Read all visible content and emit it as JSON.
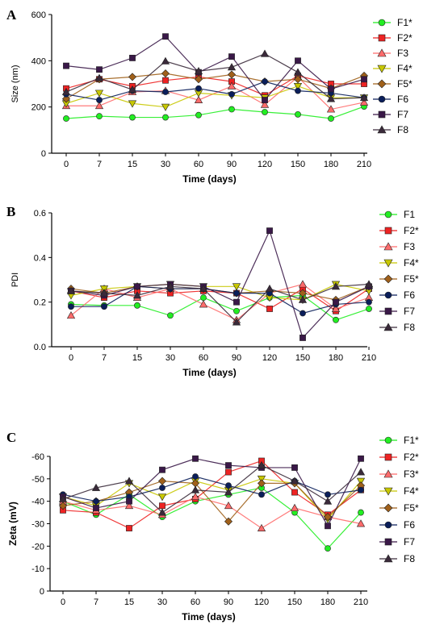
{
  "markers": {
    "F1": {
      "color": "#22ee22",
      "shape": "circle"
    },
    "F2": {
      "color": "#ee2222",
      "shape": "square"
    },
    "F3": {
      "color": "#ff6b6b",
      "shape": "triangle-up"
    },
    "F4": {
      "color": "#c8c800",
      "shape": "triangle-down"
    },
    "F5": {
      "color": "#a0601a",
      "shape": "diamond"
    },
    "F6": {
      "color": "#0a1e5a",
      "shape": "circle"
    },
    "F7": {
      "color": "#3a1848",
      "shape": "square"
    },
    "F8": {
      "color": "#3a2a3a",
      "shape": "triangle-up"
    }
  },
  "chart_data": [
    {
      "panel": "A",
      "type": "line",
      "xlabel": "Time (days)",
      "ylabel": "Size (nm)",
      "x": [
        "0",
        "7",
        "15",
        "30",
        "60",
        "90",
        "120",
        "150",
        "180",
        "210"
      ],
      "ylim": [
        0,
        600
      ],
      "yticks": [
        0,
        200,
        400,
        600
      ],
      "invert_y": false,
      "legend_position": "right",
      "series": [
        {
          "name": "F1*",
          "key": "F1",
          "values": [
            150,
            160,
            155,
            155,
            165,
            190,
            178,
            168,
            150,
            202
          ]
        },
        {
          "name": "F2*",
          "key": "F2",
          "values": [
            280,
            320,
            290,
            315,
            330,
            310,
            250,
            335,
            300,
            300
          ]
        },
        {
          "name": "F3",
          "key": "F3",
          "values": [
            205,
            205,
            265,
            270,
            230,
            290,
            210,
            330,
            190,
            220
          ]
        },
        {
          "name": "F4*",
          "key": "F4",
          "values": [
            215,
            260,
            215,
            200,
            260,
            250,
            240,
            290,
            240,
            240
          ]
        },
        {
          "name": "F5*",
          "key": "F5",
          "values": [
            235,
            320,
            330,
            345,
            320,
            340,
            310,
            320,
            280,
            335
          ]
        },
        {
          "name": "F6",
          "key": "F6",
          "values": [
            255,
            230,
            270,
            265,
            280,
            255,
            310,
            270,
            260,
            240
          ]
        },
        {
          "name": "F7",
          "key": "F7",
          "values": [
            378,
            362,
            412,
            505,
            350,
            418,
            230,
            400,
            278,
            320
          ]
        },
        {
          "name": "F8",
          "key": "F8",
          "values": [
            265,
            325,
            275,
            398,
            355,
            372,
            430,
            350,
            235,
            240
          ]
        }
      ]
    },
    {
      "panel": "B",
      "type": "line",
      "xlabel": "Time (days)",
      "ylabel": "PDI",
      "x": [
        "0",
        "7",
        "15",
        "30",
        "60",
        "90",
        "120",
        "150",
        "180",
        "210"
      ],
      "ylim": [
        0,
        0.6
      ],
      "yticks": [
        0.0,
        0.2,
        0.4,
        0.6
      ],
      "ytick_labels": [
        "0.0",
        "0.2",
        "0.4",
        "0.6"
      ],
      "invert_y": false,
      "legend_position": "right",
      "series": [
        {
          "name": "F1",
          "key": "F1",
          "values": [
            0.19,
            0.185,
            0.185,
            0.14,
            0.22,
            0.16,
            0.22,
            0.23,
            0.12,
            0.17
          ]
        },
        {
          "name": "F2*",
          "key": "F2",
          "values": [
            0.25,
            0.22,
            0.25,
            0.24,
            0.25,
            0.24,
            0.17,
            0.26,
            0.16,
            0.26
          ]
        },
        {
          "name": "F3",
          "key": "F3",
          "values": [
            0.14,
            0.26,
            0.22,
            0.26,
            0.19,
            0.12,
            0.24,
            0.28,
            0.17,
            0.22
          ]
        },
        {
          "name": "F4*",
          "key": "F4",
          "values": [
            0.23,
            0.26,
            0.27,
            0.28,
            0.27,
            0.27,
            0.22,
            0.21,
            0.28,
            0.25
          ]
        },
        {
          "name": "F5*",
          "key": "F5",
          "values": [
            0.26,
            0.24,
            0.27,
            0.26,
            0.26,
            0.24,
            0.25,
            0.24,
            0.21,
            0.27
          ]
        },
        {
          "name": "F6",
          "key": "F6",
          "values": [
            0.18,
            0.18,
            0.27,
            0.26,
            0.26,
            0.24,
            0.24,
            0.15,
            0.19,
            0.2
          ]
        },
        {
          "name": "F7",
          "key": "F7",
          "values": [
            0.25,
            0.23,
            0.27,
            0.28,
            0.27,
            0.2,
            0.52,
            0.04,
            0.2,
            0.27
          ]
        },
        {
          "name": "F8",
          "key": "F8",
          "values": [
            0.25,
            0.24,
            0.23,
            0.27,
            0.26,
            0.11,
            0.26,
            0.21,
            0.27,
            0.28
          ]
        }
      ]
    },
    {
      "panel": "C",
      "type": "line",
      "xlabel": "Time (days)",
      "ylabel": "Zeta (mV)",
      "x": [
        "0",
        "7",
        "15",
        "30",
        "60",
        "90",
        "120",
        "150",
        "180",
        "210"
      ],
      "ylim": [
        0,
        -60
      ],
      "yticks": [
        0,
        -10,
        -20,
        -30,
        -40,
        -50,
        -60
      ],
      "invert_y": true,
      "legend_position": "right",
      "series": [
        {
          "name": "F1*",
          "key": "F1",
          "values": [
            -40,
            -34,
            -43,
            -33,
            -40,
            -43,
            -46,
            -35,
            -19,
            -35
          ]
        },
        {
          "name": "F2*",
          "key": "F2",
          "values": [
            -36,
            -35,
            -28,
            -38,
            -41,
            -53,
            -58,
            -44,
            -34,
            -45
          ]
        },
        {
          "name": "F3*",
          "key": "F3",
          "values": [
            -40,
            -36,
            -38,
            -34,
            -42,
            -38,
            -28,
            -37,
            -33,
            -30
          ]
        },
        {
          "name": "F4*",
          "key": "F4",
          "values": [
            -42,
            -38,
            -48,
            -42,
            -49,
            -45,
            -50,
            -48,
            -32,
            -49
          ]
        },
        {
          "name": "F5*",
          "key": "F5",
          "values": [
            -38,
            -40,
            -44,
            -49,
            -48,
            -31,
            -48,
            -48,
            -33,
            -47
          ]
        },
        {
          "name": "F6",
          "key": "F6",
          "values": [
            -43,
            -40,
            -42,
            -46,
            -51,
            -47,
            -43,
            -49,
            -43,
            -45
          ]
        },
        {
          "name": "F7",
          "key": "F7",
          "values": [
            -42,
            -37,
            -40,
            -54,
            -59,
            -56,
            -55,
            -55,
            -29,
            -59
          ]
        },
        {
          "name": "F8",
          "key": "F8",
          "values": [
            -41,
            -46,
            -49,
            -35,
            -45,
            -44,
            -56,
            -49,
            -40,
            -53
          ]
        }
      ]
    }
  ]
}
